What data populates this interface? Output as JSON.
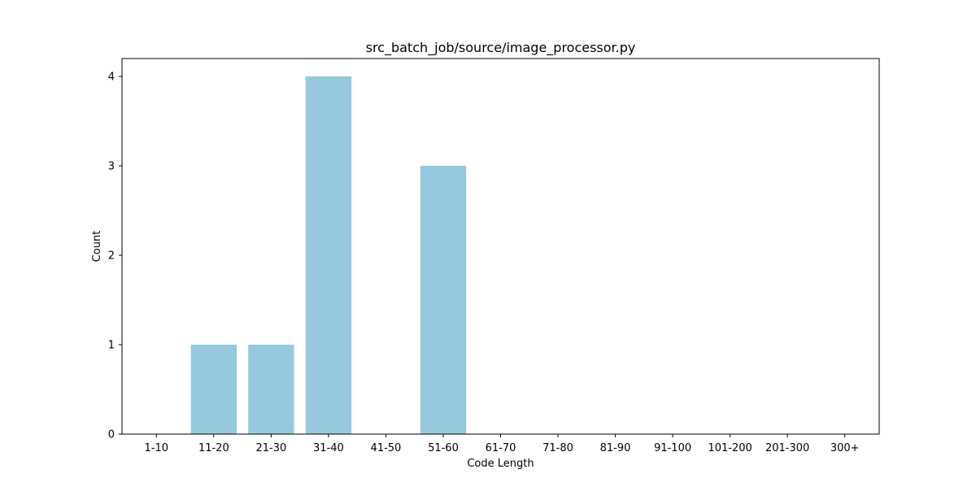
{
  "chart_data": {
    "type": "bar",
    "title": "src_batch_job/source/image_processor.py",
    "xlabel": "Code Length",
    "ylabel": "Count",
    "categories": [
      "1-10",
      "11-20",
      "21-30",
      "31-40",
      "41-50",
      "51-60",
      "61-70",
      "71-80",
      "81-90",
      "91-100",
      "101-200",
      "201-300",
      "300+"
    ],
    "values": [
      0,
      1,
      1,
      4,
      0,
      3,
      0,
      0,
      0,
      0,
      0,
      0,
      0
    ],
    "ylim": [
      0,
      4.2
    ],
    "yticks": [
      0,
      1,
      2,
      3,
      4
    ],
    "grid": false,
    "bar_color": "#96c9de"
  }
}
